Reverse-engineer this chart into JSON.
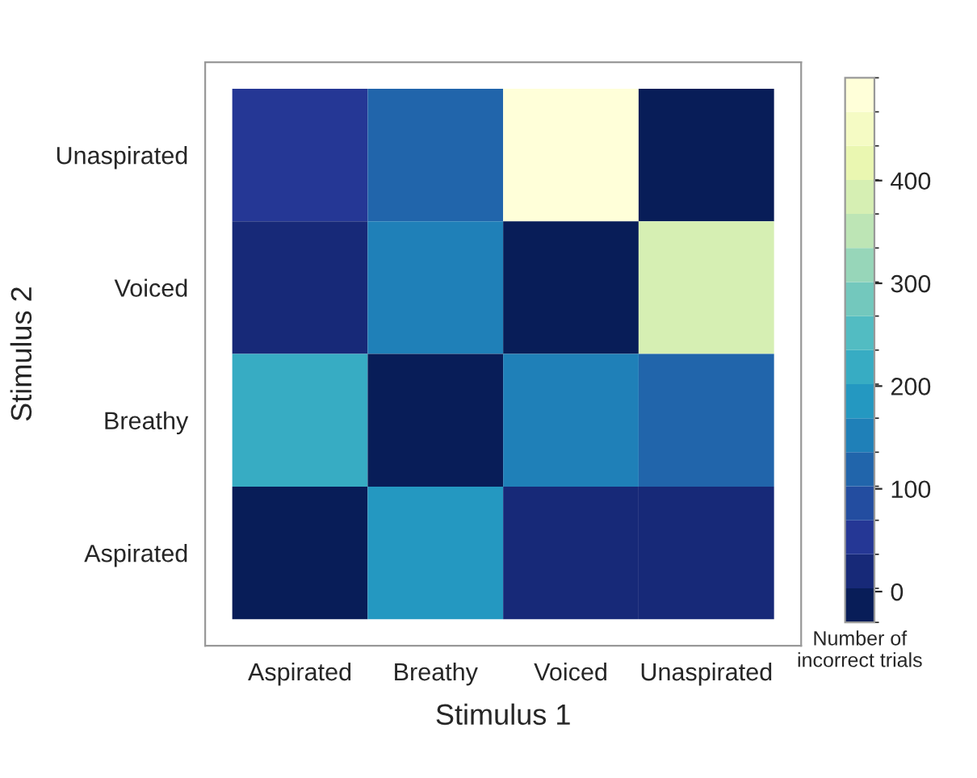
{
  "chart_data": {
    "type": "heatmap",
    "xlabel": "Stimulus 1",
    "ylabel": "Stimulus 2",
    "clabel": "Number of\nincorrect trials",
    "categories": [
      "Aspirated",
      "Breathy",
      "Voiced",
      "Unaspirated"
    ],
    "y_categories": [
      "Unaspirated",
      "Voiced",
      "Breathy",
      "Aspirated"
    ],
    "cells": [
      [
        60,
        120,
        500,
        0
      ],
      [
        30,
        160,
        0,
        400
      ],
      [
        230,
        0,
        160,
        120
      ],
      [
        0,
        200,
        30,
        30
      ]
    ],
    "clim": [
      -30,
      500
    ],
    "cticks": [
      0,
      100,
      200,
      300,
      400
    ]
  }
}
